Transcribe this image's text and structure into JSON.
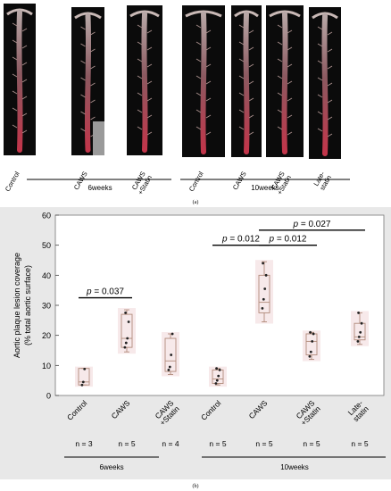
{
  "panel_a": {
    "label": "(a)",
    "sample_labels_6w": [
      "Control",
      "CAWS",
      "CAWS\n+Statin"
    ],
    "sample_labels_10w": [
      "Control",
      "CAWS",
      "CAWS\n+Statin",
      "Late-\nstatin"
    ],
    "group_6w": "6weeks",
    "group_10w": "10weeks"
  },
  "panel_b": {
    "label": "(b)",
    "group_6w": "6weeks",
    "group_10w": "10weeks",
    "n_labels": [
      "n = 3",
      "n = 5",
      "n = 4",
      "n = 5",
      "n = 5",
      "n = 5",
      "n = 5"
    ]
  },
  "chart_data": {
    "type": "box",
    "ylabel": "Aortic plaque lesion coverage\n(% total aortic surface)",
    "ylim": [
      0,
      60
    ],
    "yticks": [
      0,
      10,
      20,
      30,
      40,
      50,
      60
    ],
    "grid": false,
    "categories": [
      "Control",
      "CAWS",
      "CAWS\n+Statin",
      "Control",
      "CAWS",
      "CAWS\n+Statin",
      "Late-\nstatin"
    ],
    "boxes": [
      {
        "min": 3.5,
        "q1": 3.5,
        "median": 4.5,
        "q3": 9,
        "max": 9,
        "points": [
          3.5,
          4.5,
          8.8
        ]
      },
      {
        "min": 14.5,
        "q1": 16,
        "median": 19,
        "q3": 27,
        "max": 28.5,
        "points": [
          16,
          17.5,
          19,
          24.5,
          27.5
        ]
      },
      {
        "min": 7,
        "q1": 8,
        "median": 11.5,
        "q3": 19,
        "max": 20.5,
        "points": [
          8.5,
          9.5,
          13.5,
          20.5
        ]
      },
      {
        "min": 3.5,
        "q1": 4,
        "median": 5.5,
        "q3": 8.5,
        "max": 9,
        "points": [
          4,
          5,
          6.5,
          8.5,
          9
        ]
      },
      {
        "min": 24.5,
        "q1": 27.5,
        "median": 31,
        "q3": 40,
        "max": 44.5,
        "points": [
          29,
          32,
          35.5,
          40,
          44
        ]
      },
      {
        "min": 12,
        "q1": 13.5,
        "median": 18,
        "q3": 20.5,
        "max": 21,
        "points": [
          13,
          14.5,
          18,
          20.5,
          21
        ]
      },
      {
        "min": 17,
        "q1": 18.5,
        "median": 19.5,
        "q3": 24,
        "max": 27.5,
        "points": [
          18,
          19.5,
          21,
          24,
          27.5
        ]
      }
    ],
    "annotations": [
      {
        "text": "p = 0.037",
        "from": 0,
        "to": 1,
        "y": 32.5
      },
      {
        "text": "p = 0.012",
        "from": 3,
        "to": 4,
        "y": 50
      },
      {
        "text": "p = 0.012",
        "from": 4,
        "to": 5,
        "y": 50
      },
      {
        "text": "p = 0.027",
        "from": 4,
        "to": 6,
        "y": 55
      }
    ],
    "colors": {
      "box": "#b08a7a",
      "box_fill": "#f7e9ea",
      "bar": "#000000",
      "point": "#222222",
      "panel_bg": "#e8e8e8"
    }
  }
}
